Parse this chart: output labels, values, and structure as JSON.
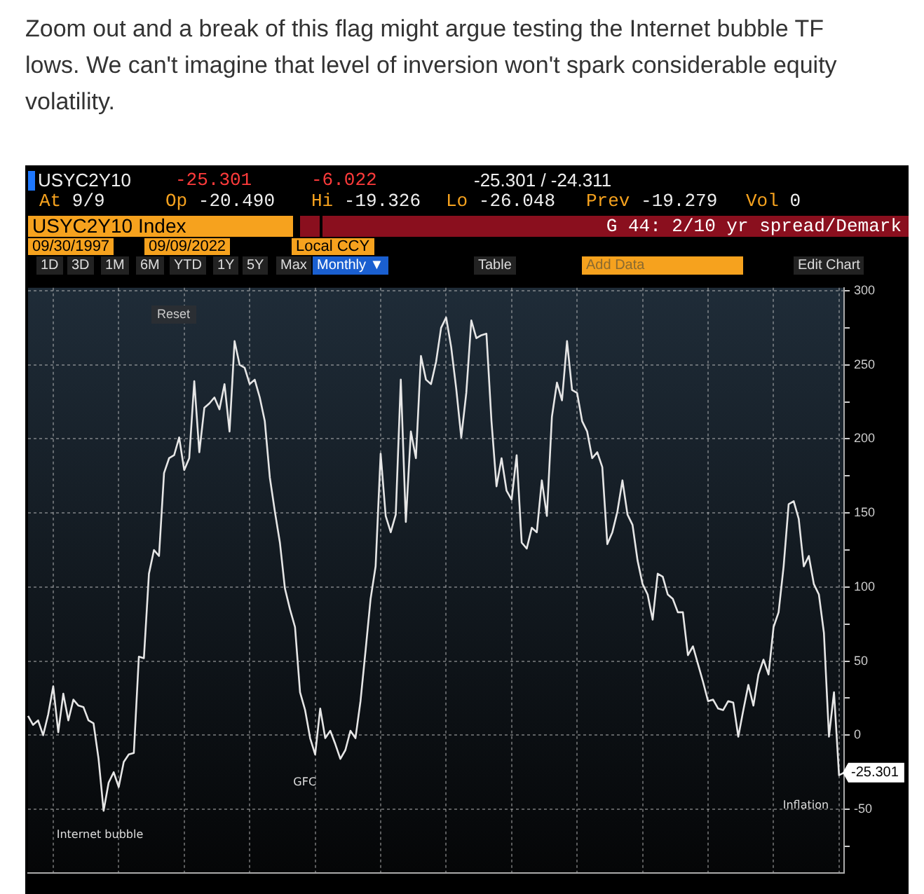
{
  "chart_data": {
    "type": "line",
    "title": "Zoom out and a break of this flag might argue testing the Internet bubble TF lows. We can't imagine that level of inversion won't spark considerable equity volatility.",
    "annotations": [
      "USYC2Y10",
      "-25.301",
      "-6.022",
      "-25.301 / -24.311",
      "At 9/9",
      "Op -20.490",
      "Hi -19.326",
      "Lo -26.048",
      "Prev -19.279",
      "Vol 0",
      "USYC2Y10 Index",
      "G 44: 2/10 yr spread/Demark",
      "09/30/1997",
      "09/09/2022",
      "Local CCY",
      "1D",
      "3D",
      "1M",
      "6M",
      "YTD",
      "1Y",
      "5Y",
      "Max",
      "Monthly ▼",
      "Table",
      "Add Data",
      "Edit Chart",
      "Reset",
      "Internet bubble",
      "GFC",
      "Inflation"
    ],
    "categories": [
      null,
      null,
      null,
      null,
      null,
      null,
      null,
      null,
      null,
      null,
      null,
      null,
      null,
      null,
      null,
      null,
      null,
      null,
      null,
      null,
      null,
      null,
      null,
      null,
      null,
      null,
      null,
      null,
      null,
      null,
      null,
      null,
      null,
      null,
      null,
      null,
      null,
      null,
      null,
      null,
      null,
      null,
      null,
      null,
      null,
      null,
      null,
      null,
      null,
      null,
      null,
      null,
      null,
      null,
      null,
      null,
      null,
      null,
      null,
      null,
      null,
      null,
      null,
      null,
      null,
      null,
      null,
      null,
      null,
      null,
      null,
      null,
      null,
      null,
      null,
      null,
      null,
      null,
      null,
      null,
      null,
      null,
      null,
      null,
      null,
      null,
      null,
      null,
      null,
      null,
      null,
      null,
      null,
      null,
      null,
      null,
      null,
      null,
      null,
      null,
      null,
      null,
      null,
      null,
      null,
      null,
      null,
      null,
      null,
      null,
      null,
      null,
      null,
      null,
      null,
      null,
      null,
      null,
      null,
      null,
      null,
      null,
      null,
      null,
      null,
      null,
      null,
      null,
      null,
      null,
      null,
      null,
      null,
      null,
      null,
      null,
      null,
      null,
      null,
      null,
      null,
      null,
      null,
      null,
      null,
      null,
      null,
      null,
      null,
      null,
      null,
      null,
      null,
      null,
      null,
      null,
      null,
      null,
      null,
      null,
      null,
      null,
      null
    ],
    "series": [
      {
        "color": "#e6e6e6",
        "values": [
          13,
          7,
          10,
          0,
          14,
          33,
          2,
          28,
          10,
          24,
          20,
          19,
          10,
          8,
          -16,
          -51,
          -32,
          -25,
          -35,
          -18,
          -13,
          -12,
          53,
          52,
          109,
          125,
          121,
          177,
          187,
          189,
          201,
          179,
          187,
          239,
          191,
          221,
          224,
          228,
          220,
          237,
          205,
          266,
          250,
          248,
          237,
          240,
          228,
          212,
          174,
          151,
          130,
          99,
          85,
          73,
          29,
          17,
          -2,
          -13,
          18,
          -2,
          3,
          -6,
          -16,
          -10,
          3,
          -2,
          23,
          57,
          92,
          114,
          190,
          148,
          137,
          149,
          240,
          144,
          205,
          187,
          256,
          240,
          237,
          252,
          275,
          282,
          262,
          234,
          201,
          231,
          280,
          268,
          270,
          271,
          212,
          168,
          187,
          165,
          159,
          189,
          130,
          126,
          140,
          137,
          172,
          148,
          215,
          238,
          226,
          266,
          233,
          231,
          212,
          205,
          187,
          191,
          181,
          129,
          137,
          151,
          172,
          149,
          142,
          118,
          102,
          95,
          78,
          109,
          107,
          95,
          92,
          83,
          83,
          54,
          60,
          48,
          36,
          23,
          24,
          18,
          17,
          23,
          22,
          -1,
          17,
          34,
          20,
          41,
          51,
          41,
          73,
          83,
          114,
          156,
          158,
          146,
          114,
          121,
          102,
          95,
          69,
          -1,
          29,
          -27,
          -25.301
        ],
        "value_labels": [
          null,
          null,
          null,
          null,
          null,
          null,
          null,
          null,
          null,
          null,
          null,
          null,
          null,
          null,
          null,
          null,
          null,
          null,
          null,
          null,
          null,
          null,
          null,
          null,
          null,
          null,
          null,
          null,
          null,
          null,
          null,
          null,
          null,
          null,
          null,
          null,
          null,
          null,
          null,
          null,
          null,
          null,
          null,
          null,
          null,
          null,
          null,
          null,
          null,
          null,
          null,
          null,
          null,
          null,
          null,
          null,
          null,
          null,
          null,
          null,
          null,
          null,
          null,
          null,
          null,
          null,
          null,
          null,
          null,
          null,
          null,
          null,
          null,
          null,
          null,
          null,
          null,
          null,
          null,
          null,
          null,
          null,
          null,
          null,
          null,
          null,
          null,
          null,
          null,
          null,
          null,
          null,
          null,
          null,
          null,
          null,
          null,
          null,
          null,
          null,
          null,
          null,
          null,
          null,
          null,
          null,
          null,
          null,
          null,
          null,
          null,
          null,
          null,
          null,
          null,
          null,
          null,
          null,
          null,
          null,
          null,
          null,
          null,
          null,
          null,
          null,
          null,
          null,
          null,
          null,
          null,
          null,
          null,
          null,
          null,
          null,
          null,
          null,
          null,
          null,
          null,
          null,
          null,
          null,
          null,
          null,
          null,
          null,
          null,
          null,
          null,
          null,
          null,
          null,
          null,
          null,
          null,
          null,
          null,
          null,
          null,
          null,
          "-25.301"
        ]
      }
    ],
    "ylim": [
      -93,
      302
    ],
    "yticks": [
      {
        "value": -75,
        "label": null
      },
      -50,
      {
        "value": -25,
        "label": null
      },
      0,
      {
        "value": 25,
        "label": null
      },
      50,
      {
        "value": 75,
        "label": null
      },
      100,
      {
        "value": 125,
        "label": null
      },
      150,
      {
        "value": 175,
        "label": null
      },
      200,
      {
        "value": 225,
        "label": null
      },
      250,
      {
        "value": 275,
        "label": null
      },
      300
    ],
    "grid": true,
    "tick_labels": "y"
  }
}
